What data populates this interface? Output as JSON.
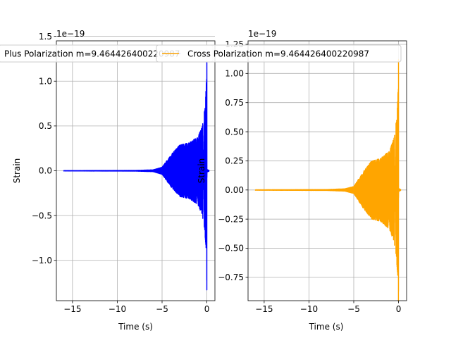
{
  "chart_data": [
    {
      "type": "line",
      "panel": "left",
      "title": "",
      "xlabel": "Time (s)",
      "ylabel": "Strain",
      "offset_label": "1e−19",
      "xlim": [
        -16.8,
        0.9
      ],
      "ylim": [
        -1.45,
        1.45
      ],
      "xticks": [
        -15,
        -10,
        -5,
        0
      ],
      "xtick_labels": [
        "−15",
        "−10",
        "−5",
        "0"
      ],
      "yticks": [
        -1.0,
        -0.5,
        0.0,
        0.5,
        1.0,
        1.5
      ],
      "ytick_labels": [
        "−1.0",
        "−0.5",
        "0.0",
        "0.5",
        "1.0",
        "1.5"
      ],
      "grid": true,
      "legend_placement": "top",
      "series": [
        {
          "name": "Plus Polarization m=9.464426400220987",
          "color": "#0000ff",
          "t_start": -16.0,
          "t_end": 0.15,
          "t_merger": 0.0,
          "shape": [
            [
              -16.0,
              0.002
            ],
            [
              -8.0,
              0.004
            ],
            [
              -6.0,
              0.01
            ],
            [
              -5.0,
              0.04
            ],
            [
              -4.0,
              0.18
            ],
            [
              -3.0,
              0.29
            ],
            [
              -2.0,
              0.31
            ],
            [
              -1.0,
              0.38
            ],
            [
              -0.5,
              0.5
            ],
            [
              -0.2,
              0.72
            ],
            [
              -0.05,
              1.0
            ],
            [
              0.0,
              1.33
            ],
            [
              0.01,
              0.02
            ],
            [
              0.15,
              0.0
            ]
          ],
          "peak_min": -1.33,
          "peak_max": 1.35
        }
      ]
    },
    {
      "type": "line",
      "panel": "right",
      "title": "",
      "xlabel": "Time (s)",
      "ylabel": "Strain",
      "offset_label": "1e−19",
      "xlim": [
        -16.8,
        0.9
      ],
      "ylim": [
        -0.95,
        1.28
      ],
      "xticks": [
        -15,
        -10,
        -5,
        0
      ],
      "xtick_labels": [
        "−15",
        "−10",
        "−5",
        "0"
      ],
      "yticks": [
        -0.75,
        -0.5,
        -0.25,
        0.0,
        0.25,
        0.5,
        0.75,
        1.0,
        1.25
      ],
      "ytick_labels": [
        "−0.75",
        "−0.50",
        "−0.25",
        "0.00",
        "0.25",
        "0.50",
        "0.75",
        "1.00",
        "1.25"
      ],
      "grid": true,
      "legend_placement": "top",
      "series": [
        {
          "name": "Cross Polarization m=9.464426400220987",
          "color": "#ffa500",
          "t_start": -16.0,
          "t_end": 0.15,
          "t_merger": 0.0,
          "shape": [
            [
              -16.0,
              0.002
            ],
            [
              -8.0,
              0.004
            ],
            [
              -6.0,
              0.01
            ],
            [
              -5.0,
              0.03
            ],
            [
              -4.0,
              0.15
            ],
            [
              -3.0,
              0.25
            ],
            [
              -2.0,
              0.27
            ],
            [
              -1.0,
              0.34
            ],
            [
              -0.5,
              0.45
            ],
            [
              -0.2,
              0.62
            ],
            [
              -0.05,
              0.85
            ],
            [
              0.0,
              1.12
            ],
            [
              0.01,
              0.02
            ],
            [
              0.15,
              0.0
            ]
          ],
          "peak_min": -0.87,
          "peak_max": 1.12
        }
      ]
    }
  ]
}
